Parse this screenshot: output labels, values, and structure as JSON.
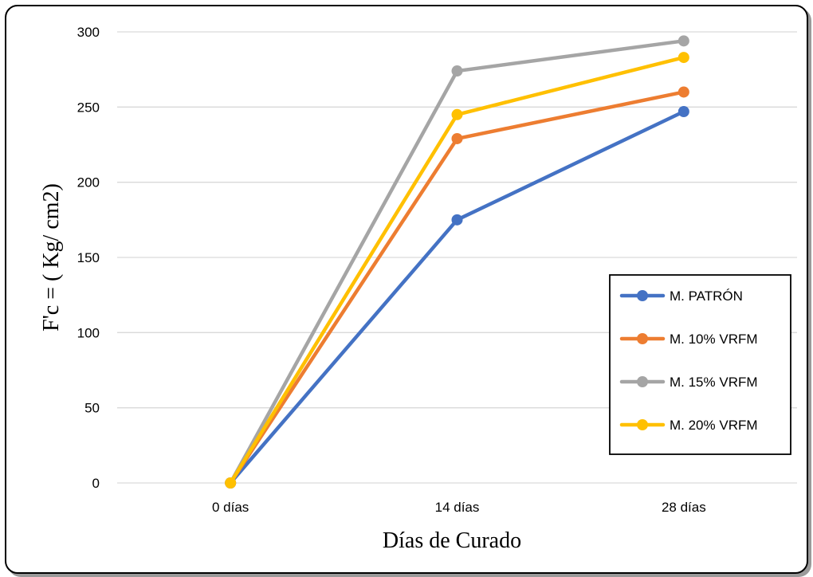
{
  "chart_data": {
    "type": "line",
    "categories": [
      "0 días",
      "14 días",
      "28 días"
    ],
    "series": [
      {
        "name": "M. PATRÓN",
        "color": "#4472C4",
        "values": [
          0,
          175,
          247
        ]
      },
      {
        "name": "M. 10% VRFM",
        "color": "#ED7D31",
        "values": [
          0,
          229,
          260
        ]
      },
      {
        "name": "M. 15% VRFM",
        "color": "#A5A5A5",
        "values": [
          0,
          274,
          294
        ]
      },
      {
        "name": "M. 20% VRFM",
        "color": "#FFC000",
        "values": [
          0,
          245,
          283
        ]
      }
    ],
    "xlabel": "Días de Curado",
    "ylabel": "F'c = ( Kg/ cm2)",
    "ylim": [
      0,
      300
    ],
    "yticks": [
      0,
      50,
      100,
      150,
      200,
      250,
      300
    ],
    "grid": true,
    "legend_position": "right"
  }
}
